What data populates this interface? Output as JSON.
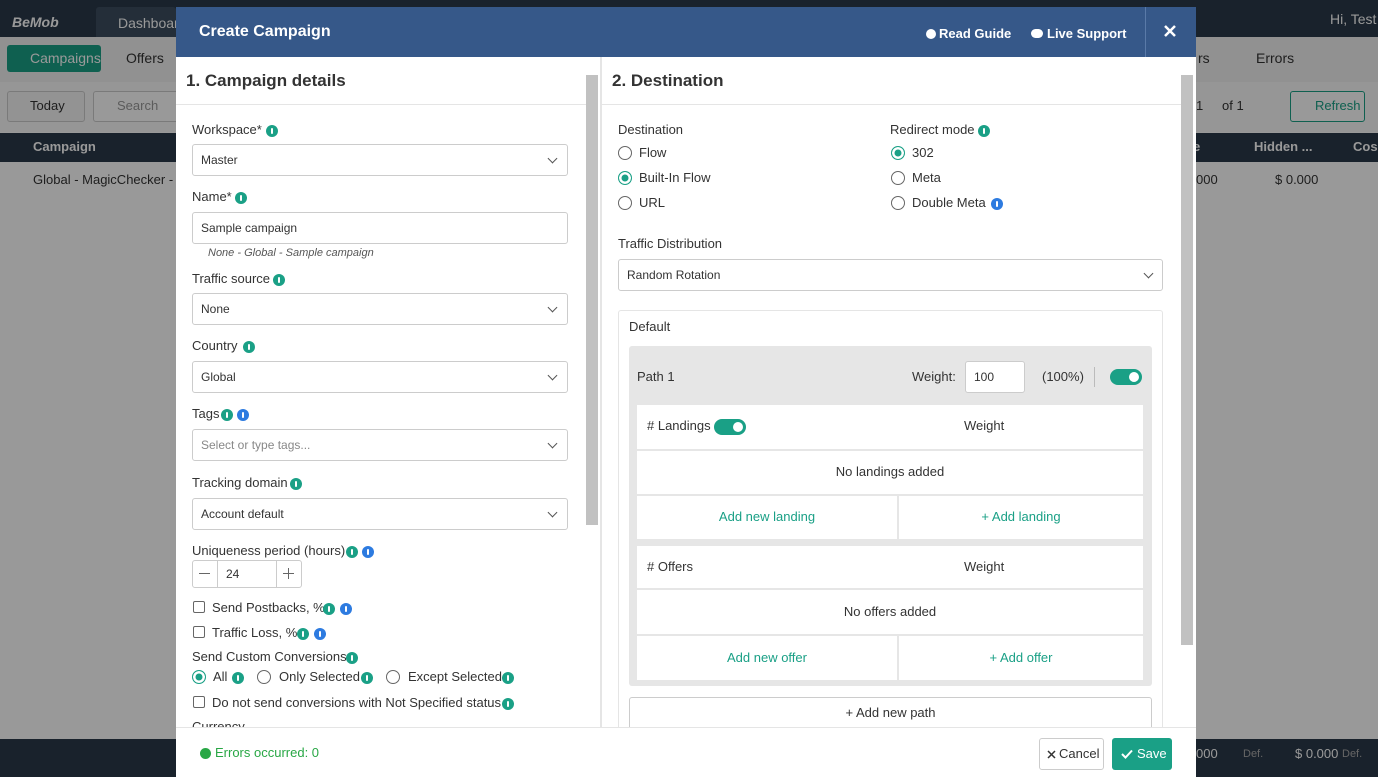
{
  "app": {
    "logo": "BeMob",
    "nav": [
      "Dashboard"
    ],
    "greeting": "Hi, Test"
  },
  "toolbar": {
    "tabs": [
      "Campaigns",
      "Offers"
    ],
    "right_tabs": [
      "rs",
      "Errors"
    ],
    "date": "Today",
    "search": "Search",
    "page": "1",
    "of": "of 1",
    "refresh": "Refresh"
  },
  "table": {
    "headers": [
      "Campaign",
      "e",
      "Hidden ...",
      "Cos"
    ],
    "rows": [
      [
        "Global - MagicChecker - I",
        "000",
        "$ 0.000"
      ]
    ],
    "footer": [
      "000",
      "Def.",
      "$ 0.000",
      "Def."
    ]
  },
  "modal": {
    "title": "Create Campaign",
    "links": [
      "Read Guide",
      "Live Support"
    ],
    "left": {
      "heading": "1. Campaign details",
      "workspace": {
        "label": "Workspace*",
        "value": "Master"
      },
      "name": {
        "label": "Name*",
        "value": "Sample campaign",
        "hint": "None - Global - Sample campaign"
      },
      "traffic_source": {
        "label": "Traffic source",
        "value": "None"
      },
      "country": {
        "label": "Country",
        "value": "Global"
      },
      "tags": {
        "label": "Tags",
        "placeholder": "Select or type tags..."
      },
      "tracking_domain": {
        "label": "Tracking domain",
        "value": "Account default"
      },
      "uniqueness": {
        "label": "Uniqueness period (hours)",
        "value": "24"
      },
      "checkboxes": [
        "Send Postbacks, %",
        "Traffic Loss, %"
      ],
      "custom_conversions": {
        "label": "Send Custom Conversions",
        "options": [
          "All",
          "Only Selected",
          "Except Selected"
        ]
      },
      "not_specified": "Do not send conversions with Not Specified status",
      "currency": "Currency"
    },
    "right": {
      "heading": "2. Destination",
      "destination": {
        "label": "Destination",
        "options": [
          "Flow",
          "Built-In Flow",
          "URL"
        ]
      },
      "redirect": {
        "label": "Redirect mode",
        "options": [
          "302",
          "Meta",
          "Double Meta"
        ]
      },
      "distribution": {
        "label": "Traffic Distribution",
        "value": "Random Rotation"
      },
      "default": "Default",
      "path": {
        "name": "Path 1",
        "weight_label": "Weight:",
        "weight": "100",
        "percent": "(100%)"
      },
      "landings": {
        "header": "# Landings",
        "weight": "Weight",
        "empty": "No landings added",
        "actions": [
          "Add new landing",
          "+ Add landing"
        ]
      },
      "offers": {
        "header": "# Offers",
        "weight": "Weight",
        "empty": "No offers added",
        "actions": [
          "Add new offer",
          "+ Add offer"
        ]
      },
      "add_path": "+ Add new path"
    },
    "footer": {
      "status": "Errors occurred: 0",
      "cancel": "Cancel",
      "save": "Save"
    }
  }
}
